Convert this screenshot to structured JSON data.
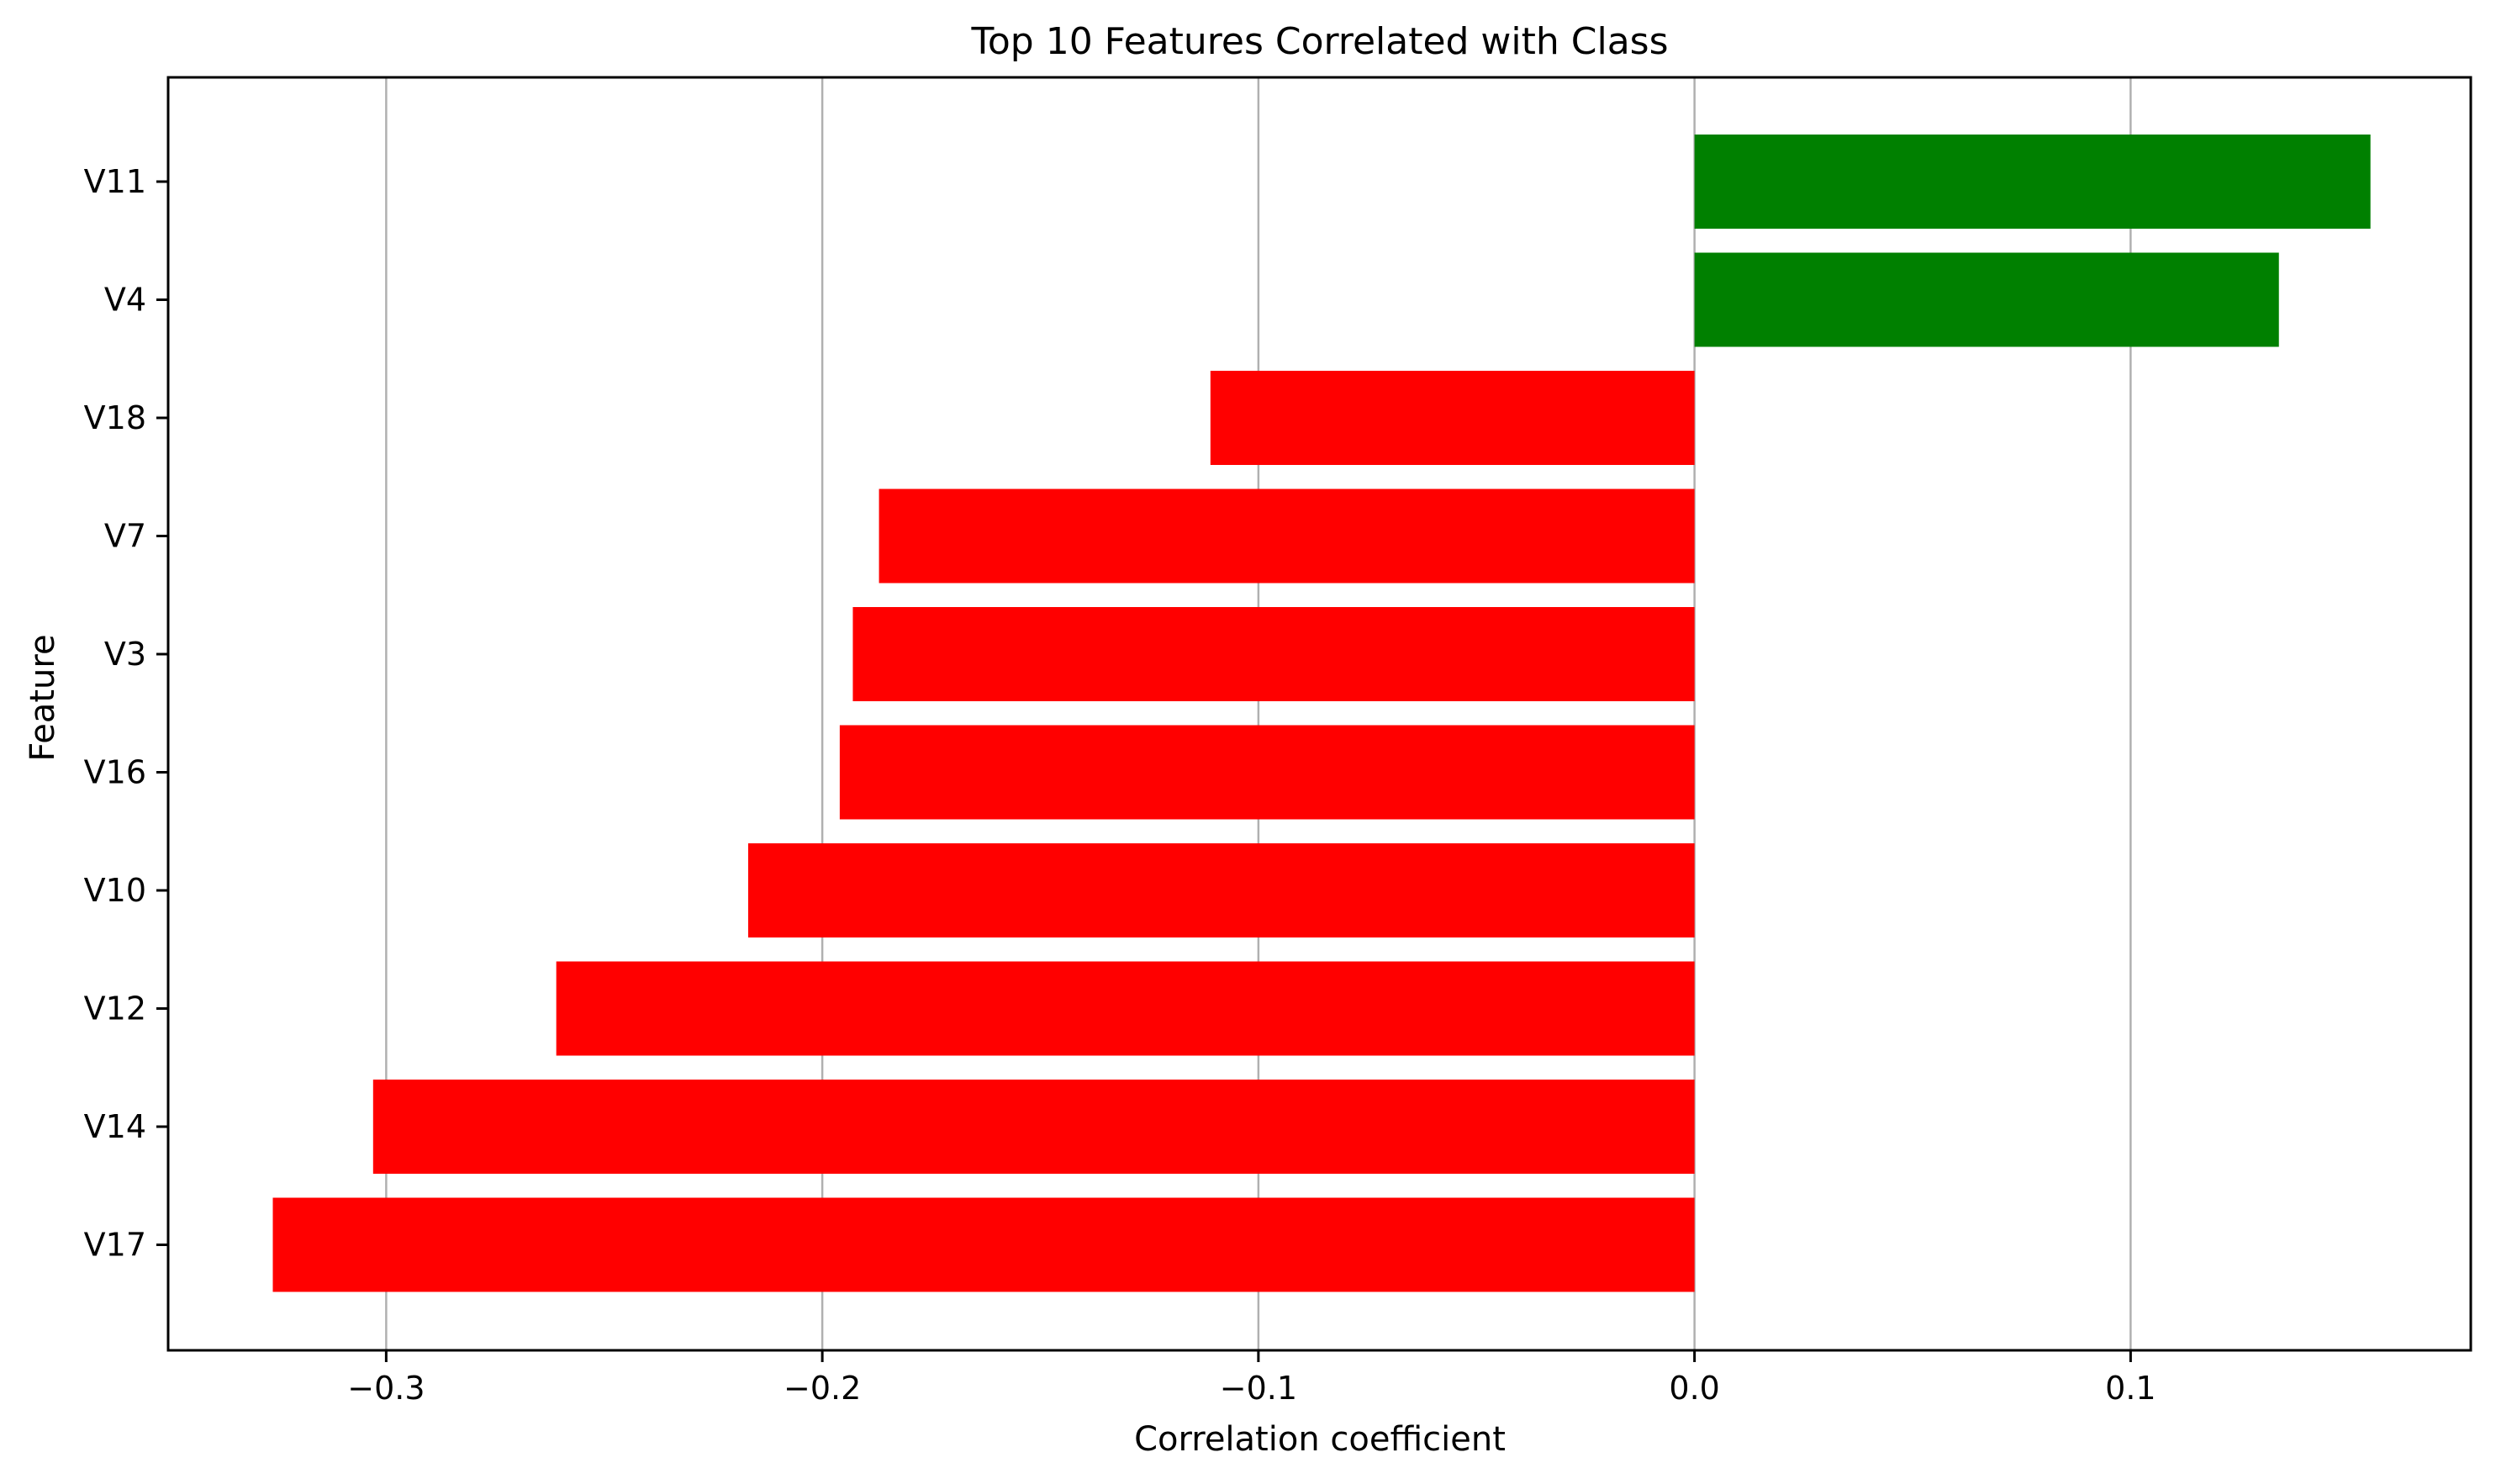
{
  "chart_data": {
    "type": "bar",
    "orientation": "horizontal",
    "title": "Top 10 Features Correlated with Class",
    "xlabel": "Correlation coefficient",
    "ylabel": "Feature",
    "categories": [
      "V11",
      "V4",
      "V18",
      "V7",
      "V3",
      "V16",
      "V10",
      "V12",
      "V14",
      "V17"
    ],
    "values": [
      0.155,
      0.134,
      -0.111,
      -0.187,
      -0.193,
      -0.196,
      -0.217,
      -0.261,
      -0.303,
      -0.326
    ],
    "xlim": [
      -0.35,
      0.178
    ],
    "xticks": [
      -0.3,
      -0.2,
      -0.1,
      0.0,
      0.1
    ],
    "xtick_labels": [
      "−0.3",
      "−0.2",
      "−0.1",
      "0.0",
      "0.1"
    ],
    "grid": "x-axis only",
    "colors": {
      "positive": "#008000",
      "negative": "#ff0000"
    }
  }
}
